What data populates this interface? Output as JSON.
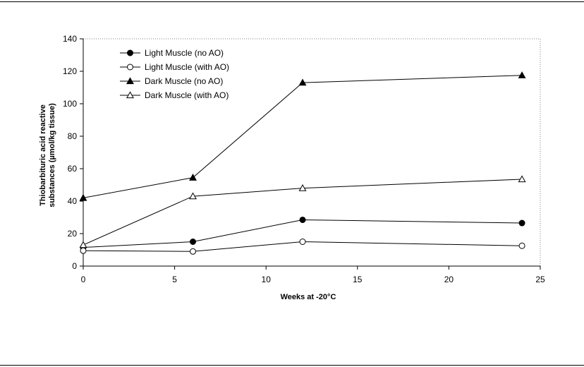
{
  "chart_data": {
    "type": "line",
    "xlabel": "Weeks at -20°C",
    "ylabel_lines": [
      "Thiobarbituric acid reactive",
      "substances (µmol/kg tissue)"
    ],
    "xlim": [
      0,
      25
    ],
    "ylim": [
      0,
      140
    ],
    "x_ticks": [
      0,
      5,
      10,
      15,
      20,
      25
    ],
    "y_ticks": [
      0,
      20,
      40,
      60,
      80,
      100,
      120,
      140
    ],
    "grid": false,
    "legend_position": "top-left",
    "x": [
      0,
      6,
      12,
      24
    ],
    "series": [
      {
        "name": "Light Muscle (no AO)",
        "marker": "circle-filled",
        "values": [
          11.5,
          15,
          28.5,
          26.5
        ]
      },
      {
        "name": "Light Muscle (with AO)",
        "marker": "circle-open",
        "values": [
          9.5,
          9,
          15,
          12.5
        ]
      },
      {
        "name": "Dark Muscle (no AO)",
        "marker": "triangle-filled",
        "values": [
          42,
          54.5,
          113,
          117.5
        ]
      },
      {
        "name": "Dark Muscle (with AO)",
        "marker": "triangle-open",
        "values": [
          13,
          43,
          48,
          53.5
        ]
      }
    ]
  }
}
